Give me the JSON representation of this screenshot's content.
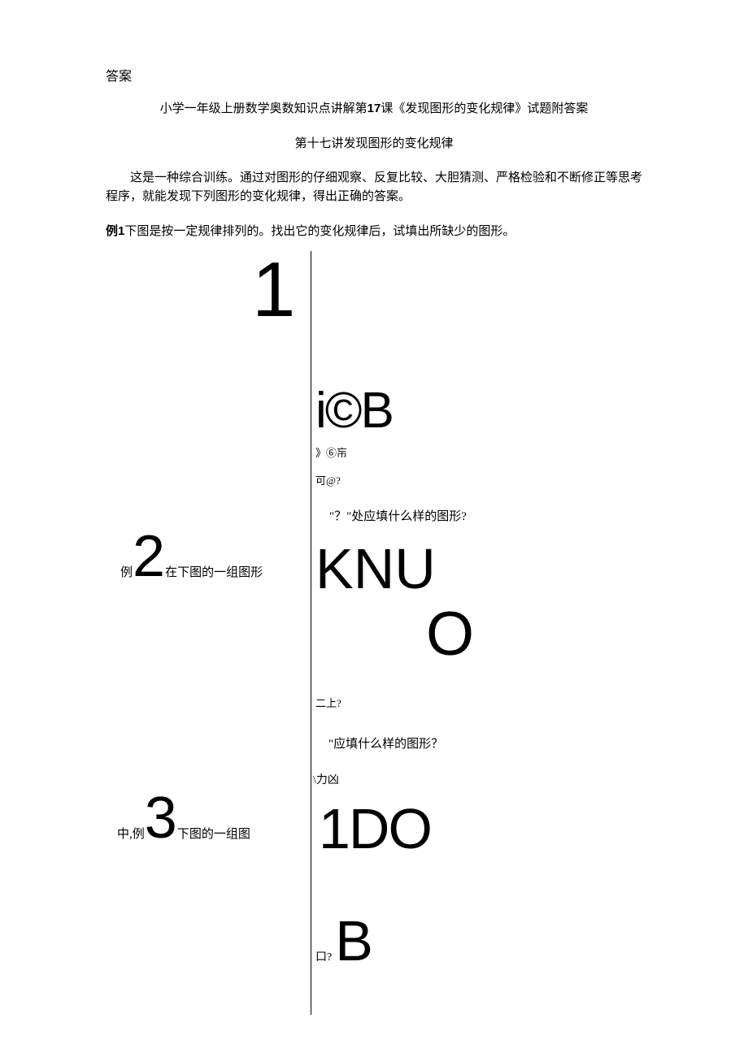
{
  "answer_label": "答案",
  "title_prefix": "小学一年级上册数学奥数知识点讲解第",
  "title_num": "17",
  "title_suffix": "课《发现图形的变化规律》试题附答案",
  "subtitle": "第十七讲发现图形的变化规律",
  "intro": "这是一种综合训练。通过对图形的仔细观察、反复比较、大胆猜测、严格检验和不断修正等思考程序，就能发现下列图形的变化规律，得出正确的答案。",
  "ex1_label": "例",
  "ex1_num": "1",
  "ex1_text": "下图是按一定规律排列的。找出它的变化规律后，试填出所缺少的图形。",
  "big_one": "1",
  "icb": "i©B",
  "line_small_1": "》⑥㠵",
  "line_small_2": "可@?",
  "ex2_left_a": "例",
  "big_two": "2",
  "ex2_left_b": "在下图的一组图形",
  "ex2_right": "\"？\"处应填什么样的图形?",
  "knu": "KNU",
  "big_o": "O",
  "line_small_3": "二上?",
  "ex3_right_top": "\"应填什么样的图形？",
  "ex3_left_a": "中,例",
  "big_three": "3",
  "ex3_left_b": "下图的一组图",
  "line_small_4": "\\力凶",
  "one_do": "1DO",
  "bottom_small": "口?",
  "big_b": "B",
  "colors": {
    "text": "#000000",
    "background": "#ffffff"
  }
}
